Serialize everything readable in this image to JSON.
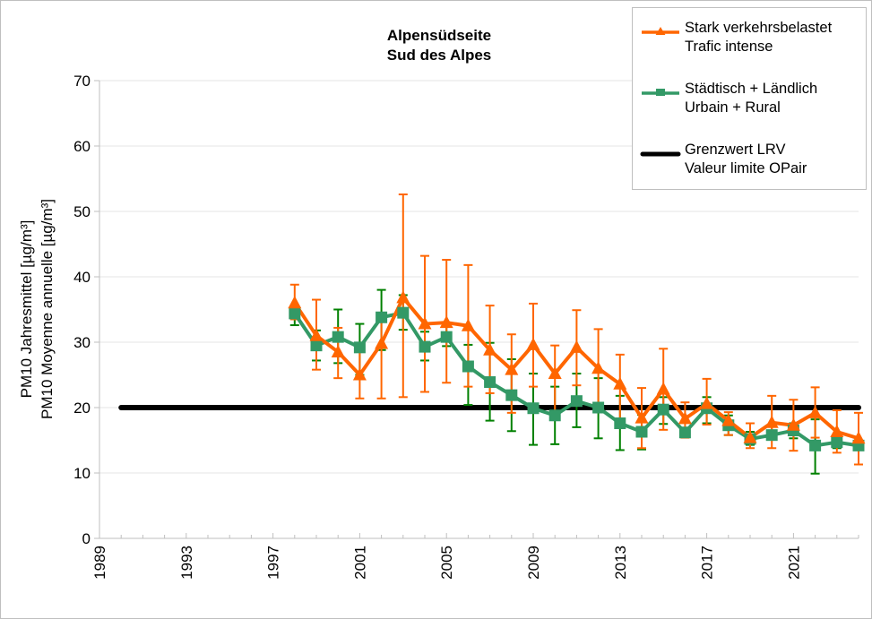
{
  "chart_data": {
    "type": "line",
    "title": "Alpensüdseite",
    "subtitle": "Sud des Alpes",
    "xlabel": "",
    "ylabel": [
      "PM10 Jahresmittel [µg/m³]",
      "PM10 Moyenne annuelle [µg/m³]"
    ],
    "ylim": [
      0,
      70
    ],
    "xlim": [
      1989,
      2024
    ],
    "yticks": [
      0,
      10,
      20,
      30,
      40,
      50,
      60,
      70
    ],
    "xticks": [
      1989,
      1993,
      1997,
      2001,
      2005,
      2009,
      2013,
      2017,
      2021
    ],
    "grid": "horizontal",
    "legend_position": "top-right",
    "x": [
      1998,
      1999,
      2000,
      2001,
      2002,
      2003,
      2004,
      2005,
      2006,
      2007,
      2008,
      2009,
      2010,
      2011,
      2012,
      2013,
      2014,
      2015,
      2016,
      2017,
      2018,
      2019,
      2020,
      2021,
      2022,
      2023,
      2024
    ],
    "series": [
      {
        "name": "Stark verkehrsbelastet",
        "name2": "Trafic intense",
        "color": "#ff6600",
        "marker": "triangle",
        "values": [
          36.0,
          31.0,
          28.5,
          25.0,
          29.8,
          36.8,
          32.8,
          33.0,
          32.5,
          28.8,
          25.8,
          29.6,
          25.2,
          29.2,
          26.0,
          23.6,
          18.4,
          22.8,
          18.3,
          20.6,
          18.0,
          15.4,
          17.7,
          17.3,
          19.2,
          16.3,
          15.3
        ],
        "err_low": [
          33.5,
          25.8,
          24.5,
          21.4,
          21.4,
          21.6,
          22.4,
          23.8,
          23.2,
          22.2,
          19.2,
          23.2,
          19.4,
          23.4,
          20.4,
          18.1,
          13.8,
          16.6,
          15.4,
          17.4,
          15.8,
          13.8,
          13.8,
          13.4,
          15.4,
          13.1,
          11.3
        ],
        "err_high": [
          38.8,
          36.5,
          32.2,
          29.0,
          33.5,
          52.6,
          43.2,
          42.6,
          41.8,
          35.6,
          31.2,
          35.9,
          29.5,
          34.9,
          32.0,
          28.1,
          23.0,
          29.0,
          20.8,
          24.4,
          19.3,
          17.6,
          21.8,
          21.2,
          23.1,
          19.6,
          19.2
        ]
      },
      {
        "name": "Städtisch + Ländlich",
        "name2": "Urbain + Rural",
        "color": "#339966",
        "errcolor": "#008000",
        "marker": "square",
        "values": [
          34.4,
          29.5,
          30.8,
          29.2,
          33.8,
          34.5,
          29.3,
          30.8,
          26.3,
          23.9,
          21.9,
          19.9,
          18.8,
          21.0,
          20.0,
          17.6,
          16.3,
          19.7,
          16.2,
          19.9,
          17.3,
          15.2,
          15.8,
          16.5,
          14.2,
          14.7,
          14.2
        ],
        "err_low": [
          32.6,
          27.2,
          26.8,
          25.0,
          28.8,
          31.9,
          27.2,
          29.4,
          20.4,
          18.0,
          16.4,
          14.3,
          14.4,
          17.0,
          15.3,
          13.5,
          13.6,
          17.5,
          15.6,
          17.6,
          15.8,
          14.3,
          15.2,
          15.3,
          9.9,
          13.8,
          13.8
        ],
        "err_high": [
          35.1,
          31.8,
          35.0,
          32.8,
          38.0,
          37.2,
          31.6,
          32.4,
          29.6,
          29.9,
          27.4,
          25.2,
          23.2,
          25.2,
          24.5,
          21.8,
          18.9,
          21.6,
          16.6,
          21.6,
          18.8,
          16.3,
          17.2,
          17.6,
          18.2,
          15.4,
          14.6
        ]
      },
      {
        "name": "Grenzwert LRV",
        "name2": "Valeur limite OPair",
        "color": "#000000",
        "marker": "none",
        "x_range": [
          1990,
          2024
        ],
        "value": 20
      }
    ]
  }
}
